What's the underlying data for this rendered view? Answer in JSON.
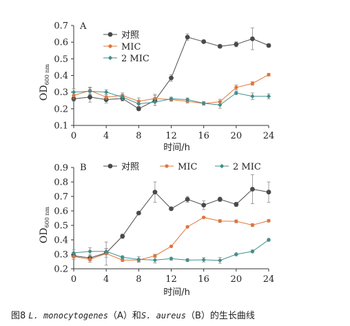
{
  "caption": {
    "prefix": "图8 ",
    "organism1": "L. monocytogenes",
    "mid": "（A）和",
    "organism2": "S. aureus",
    "suffix": "（B）的生长曲线"
  },
  "colors": {
    "control": "#4a4a4a",
    "mic": "#e0763a",
    "mic2": "#3f8f8a",
    "axis": "#333333"
  },
  "chart_data": [
    {
      "panel_label": "A",
      "type": "line",
      "x": [
        0,
        2,
        4,
        6,
        8,
        10,
        12,
        14,
        16,
        18,
        20,
        22,
        24
      ],
      "xlabel": "时间/h",
      "ylabel_main": "OD",
      "ylabel_sub": "600 nm",
      "xlim": [
        0,
        24
      ],
      "ylim": [
        0.1,
        0.7
      ],
      "xticks": [
        0,
        4,
        8,
        12,
        16,
        20,
        24
      ],
      "yticks": [
        0.1,
        0.2,
        0.3,
        0.4,
        0.5,
        0.6,
        0.7
      ],
      "grid": false,
      "legend_placement": "top-center",
      "series": [
        {
          "name": "对照",
          "key": "control",
          "marker": "circle",
          "values": [
            0.26,
            0.27,
            0.255,
            0.262,
            0.2,
            0.25,
            0.385,
            0.63,
            0.603,
            0.575,
            0.587,
            0.62,
            0.58
          ],
          "errors": [
            0.015,
            0.03,
            0.02,
            0.015,
            0.012,
            0.03,
            0.02,
            0.02,
            0.008,
            0.01,
            0.015,
            0.065,
            0.01
          ]
        },
        {
          "name": "MIC",
          "key": "mic",
          "marker": "dot",
          "values": [
            0.28,
            0.31,
            0.27,
            0.28,
            0.245,
            0.262,
            0.255,
            0.245,
            0.232,
            0.242,
            0.328,
            0.352,
            0.405
          ],
          "errors": [
            0.02,
            0.02,
            0.015,
            0.015,
            0.02,
            0.025,
            0.01,
            0.01,
            0.01,
            0.015,
            0.015,
            0.01,
            0.008
          ]
        },
        {
          "name": "2 MIC",
          "key": "mic2",
          "marker": "diamond",
          "values": [
            0.3,
            0.305,
            0.3,
            0.27,
            0.23,
            0.24,
            0.26,
            0.255,
            0.233,
            0.223,
            0.295,
            0.275,
            0.275
          ],
          "errors": [
            0.02,
            0.02,
            0.015,
            0.015,
            0.015,
            0.02,
            0.01,
            0.01,
            0.01,
            0.02,
            0.01,
            0.02,
            0.015
          ]
        }
      ]
    },
    {
      "panel_label": "B",
      "type": "line",
      "x": [
        0,
        2,
        4,
        6,
        8,
        10,
        12,
        14,
        16,
        18,
        20,
        22,
        24
      ],
      "xlabel": "时间/h",
      "ylabel_main": "OD",
      "ylabel_sub": "600 nm",
      "xlim": [
        0,
        24
      ],
      "ylim": [
        0.2,
        0.9
      ],
      "xticks": [
        0,
        4,
        8,
        12,
        16,
        20,
        24
      ],
      "yticks": [
        0.2,
        0.3,
        0.4,
        0.5,
        0.6,
        0.7,
        0.8,
        0.9
      ],
      "grid": false,
      "legend_placement": "top",
      "series": [
        {
          "name": "对照",
          "key": "control",
          "marker": "circle",
          "values": [
            0.29,
            0.275,
            0.31,
            0.425,
            0.585,
            0.73,
            0.615,
            0.68,
            0.64,
            0.68,
            0.645,
            0.75,
            0.73
          ],
          "errors": [
            0.015,
            0.02,
            0.03,
            0.015,
            0.01,
            0.07,
            0.005,
            0.02,
            0.03,
            0.015,
            0.015,
            0.1,
            0.07
          ]
        },
        {
          "name": "MIC",
          "key": "mic",
          "marker": "dot",
          "values": [
            0.285,
            0.265,
            0.305,
            0.26,
            0.26,
            0.29,
            0.355,
            0.49,
            0.555,
            0.53,
            0.528,
            0.502,
            0.532
          ],
          "errors": [
            0.02,
            0.02,
            0.08,
            0.01,
            0.01,
            0.01,
            0.005,
            0.005,
            0.005,
            0.01,
            0.01,
            0.01,
            0.008
          ]
        },
        {
          "name": "2 MIC",
          "key": "mic2",
          "marker": "diamond",
          "values": [
            0.31,
            0.32,
            0.32,
            0.28,
            0.265,
            0.26,
            0.27,
            0.26,
            0.262,
            0.258,
            0.3,
            0.32,
            0.4
          ],
          "errors": [
            0.02,
            0.025,
            0.02,
            0.01,
            0.02,
            0.02,
            0.01,
            0.01,
            0.015,
            0.02,
            0.01,
            0.01,
            0.01
          ]
        }
      ]
    }
  ]
}
